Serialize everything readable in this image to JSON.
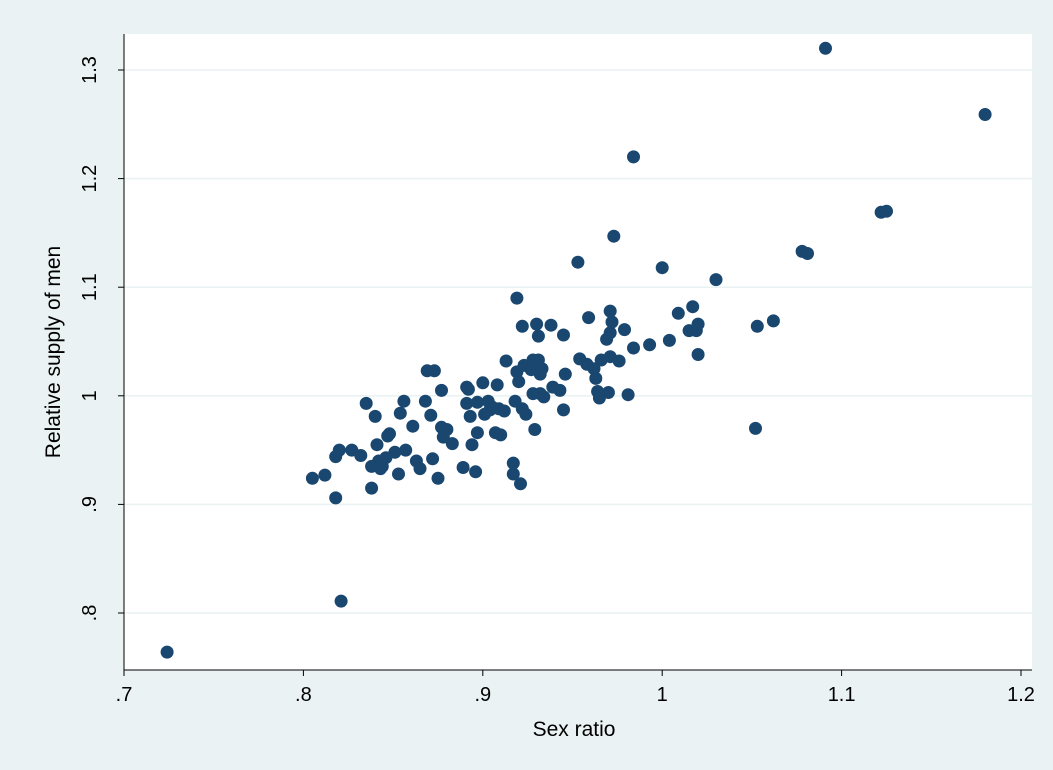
{
  "chart_data": {
    "type": "scatter",
    "title": "",
    "xlabel": "Sex ratio",
    "ylabel": "Relative supply of men",
    "xlim": [
      0.7,
      1.2
    ],
    "ylim": [
      0.75,
      1.33
    ],
    "xticks": [
      0.7,
      0.8,
      0.9,
      1.0,
      1.1,
      1.2
    ],
    "xtick_labels": [
      ".7",
      ".8",
      ".9",
      "1",
      "1.1",
      "1.2"
    ],
    "yticks": [
      0.8,
      0.9,
      1.0,
      1.1,
      1.2,
      1.3
    ],
    "ytick_labels": [
      ".8",
      ".9",
      "1",
      "1.1",
      "1.2",
      "1.3"
    ],
    "grid": "horizontal",
    "marker_color": "#1a476f",
    "points": [
      {
        "x": 0.724,
        "y": 0.764
      },
      {
        "x": 0.821,
        "y": 0.811
      },
      {
        "x": 0.818,
        "y": 0.906
      },
      {
        "x": 0.805,
        "y": 0.924
      },
      {
        "x": 0.812,
        "y": 0.927
      },
      {
        "x": 0.818,
        "y": 0.944
      },
      {
        "x": 0.82,
        "y": 0.95
      },
      {
        "x": 0.827,
        "y": 0.95
      },
      {
        "x": 0.832,
        "y": 0.945
      },
      {
        "x": 0.835,
        "y": 0.993
      },
      {
        "x": 0.838,
        "y": 0.915
      },
      {
        "x": 0.838,
        "y": 0.935
      },
      {
        "x": 0.84,
        "y": 0.981
      },
      {
        "x": 0.841,
        "y": 0.955
      },
      {
        "x": 0.842,
        "y": 0.94
      },
      {
        "x": 0.843,
        "y": 0.933
      },
      {
        "x": 0.844,
        "y": 0.935
      },
      {
        "x": 0.846,
        "y": 0.943
      },
      {
        "x": 0.847,
        "y": 0.963
      },
      {
        "x": 0.848,
        "y": 0.965
      },
      {
        "x": 0.851,
        "y": 0.948
      },
      {
        "x": 0.853,
        "y": 0.928
      },
      {
        "x": 0.854,
        "y": 0.984
      },
      {
        "x": 0.856,
        "y": 0.995
      },
      {
        "x": 0.857,
        "y": 0.95
      },
      {
        "x": 0.861,
        "y": 0.972
      },
      {
        "x": 0.863,
        "y": 0.94
      },
      {
        "x": 0.865,
        "y": 0.933
      },
      {
        "x": 0.868,
        "y": 0.995
      },
      {
        "x": 0.869,
        "y": 1.023
      },
      {
        "x": 0.871,
        "y": 0.982
      },
      {
        "x": 0.872,
        "y": 0.942
      },
      {
        "x": 0.873,
        "y": 1.023
      },
      {
        "x": 0.875,
        "y": 0.924
      },
      {
        "x": 0.877,
        "y": 1.005
      },
      {
        "x": 0.877,
        "y": 0.971
      },
      {
        "x": 0.878,
        "y": 0.962
      },
      {
        "x": 0.88,
        "y": 0.969
      },
      {
        "x": 0.883,
        "y": 0.956
      },
      {
        "x": 0.889,
        "y": 0.934
      },
      {
        "x": 0.891,
        "y": 1.008
      },
      {
        "x": 0.891,
        "y": 0.993
      },
      {
        "x": 0.892,
        "y": 1.006
      },
      {
        "x": 0.893,
        "y": 0.981
      },
      {
        "x": 0.894,
        "y": 0.955
      },
      {
        "x": 0.896,
        "y": 0.93
      },
      {
        "x": 0.897,
        "y": 0.994
      },
      {
        "x": 0.897,
        "y": 0.966
      },
      {
        "x": 0.9,
        "y": 1.012
      },
      {
        "x": 0.901,
        "y": 0.983
      },
      {
        "x": 0.903,
        "y": 0.995
      },
      {
        "x": 0.904,
        "y": 0.987
      },
      {
        "x": 0.905,
        "y": 0.99
      },
      {
        "x": 0.907,
        "y": 0.966
      },
      {
        "x": 0.908,
        "y": 1.01
      },
      {
        "x": 0.909,
        "y": 0.988
      },
      {
        "x": 0.91,
        "y": 0.964
      },
      {
        "x": 0.912,
        "y": 0.986
      },
      {
        "x": 0.913,
        "y": 1.032
      },
      {
        "x": 0.917,
        "y": 0.938
      },
      {
        "x": 0.917,
        "y": 0.928
      },
      {
        "x": 0.918,
        "y": 0.995
      },
      {
        "x": 0.919,
        "y": 1.09
      },
      {
        "x": 0.919,
        "y": 1.022
      },
      {
        "x": 0.92,
        "y": 1.013
      },
      {
        "x": 0.921,
        "y": 0.919
      },
      {
        "x": 0.922,
        "y": 0.988
      },
      {
        "x": 0.922,
        "y": 1.064
      },
      {
        "x": 0.923,
        "y": 1.028
      },
      {
        "x": 0.924,
        "y": 0.983
      },
      {
        "x": 0.927,
        "y": 1.024
      },
      {
        "x": 0.928,
        "y": 1.033
      },
      {
        "x": 0.928,
        "y": 1.002
      },
      {
        "x": 0.929,
        "y": 0.969
      },
      {
        "x": 0.93,
        "y": 1.066
      },
      {
        "x": 0.931,
        "y": 1.055
      },
      {
        "x": 0.931,
        "y": 1.033
      },
      {
        "x": 0.932,
        "y": 1.02
      },
      {
        "x": 0.932,
        "y": 1.002
      },
      {
        "x": 0.933,
        "y": 1.025
      },
      {
        "x": 0.934,
        "y": 0.999
      },
      {
        "x": 0.938,
        "y": 1.065
      },
      {
        "x": 0.939,
        "y": 1.008
      },
      {
        "x": 0.943,
        "y": 1.005
      },
      {
        "x": 0.945,
        "y": 1.056
      },
      {
        "x": 0.945,
        "y": 0.987
      },
      {
        "x": 0.946,
        "y": 1.02
      },
      {
        "x": 0.953,
        "y": 1.123
      },
      {
        "x": 0.954,
        "y": 1.034
      },
      {
        "x": 0.958,
        "y": 1.029
      },
      {
        "x": 0.959,
        "y": 1.072
      },
      {
        "x": 0.962,
        "y": 1.025
      },
      {
        "x": 0.963,
        "y": 1.016
      },
      {
        "x": 0.964,
        "y": 1.004
      },
      {
        "x": 0.965,
        "y": 0.998
      },
      {
        "x": 0.966,
        "y": 1.033
      },
      {
        "x": 0.969,
        "y": 1.052
      },
      {
        "x": 0.97,
        "y": 1.003
      },
      {
        "x": 0.971,
        "y": 1.036
      },
      {
        "x": 0.971,
        "y": 1.058
      },
      {
        "x": 0.971,
        "y": 1.078
      },
      {
        "x": 0.972,
        "y": 1.068
      },
      {
        "x": 0.973,
        "y": 1.147
      },
      {
        "x": 0.976,
        "y": 1.032
      },
      {
        "x": 0.979,
        "y": 1.061
      },
      {
        "x": 0.981,
        "y": 1.001
      },
      {
        "x": 0.984,
        "y": 1.044
      },
      {
        "x": 0.984,
        "y": 1.22
      },
      {
        "x": 0.993,
        "y": 1.047
      },
      {
        "x": 1.0,
        "y": 1.118
      },
      {
        "x": 1.004,
        "y": 1.051
      },
      {
        "x": 1.009,
        "y": 1.076
      },
      {
        "x": 1.015,
        "y": 1.06
      },
      {
        "x": 1.017,
        "y": 1.082
      },
      {
        "x": 1.019,
        "y": 1.06
      },
      {
        "x": 1.02,
        "y": 1.066
      },
      {
        "x": 1.02,
        "y": 1.038
      },
      {
        "x": 1.03,
        "y": 1.107
      },
      {
        "x": 1.052,
        "y": 0.97
      },
      {
        "x": 1.053,
        "y": 1.064
      },
      {
        "x": 1.062,
        "y": 1.069
      },
      {
        "x": 1.078,
        "y": 1.133
      },
      {
        "x": 1.081,
        "y": 1.131
      },
      {
        "x": 1.091,
        "y": 1.32
      },
      {
        "x": 1.122,
        "y": 1.169
      },
      {
        "x": 1.125,
        "y": 1.17
      },
      {
        "x": 1.18,
        "y": 1.259
      }
    ]
  }
}
